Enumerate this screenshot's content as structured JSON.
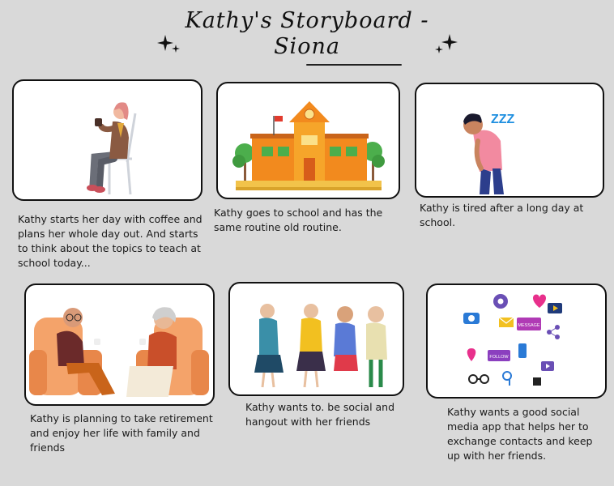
{
  "title": {
    "line1": "Kathy's Storyboard -",
    "line2": "Siona"
  },
  "panels": [
    {
      "caption": "Kathy starts her day with coffee and plans her whole day out. And starts to think about the topics to teach at school today..."
    },
    {
      "caption": "Kathy goes to school and has the same routine old routine."
    },
    {
      "caption": "Kathy is tired after a long day at school."
    },
    {
      "caption": "Kathy is planning to take retirement and enjoy her life with family and friends"
    },
    {
      "caption": "Kathy wants to. be social and hangout with her friends"
    },
    {
      "caption": "Kathy wants a good social media app that helps her to exchange contacts and keep up with her friends."
    }
  ],
  "illustration_text": {
    "zzz": "ZZZ",
    "message_tag": "MESSAGE",
    "follow_tag": "FOLLOW"
  },
  "colors": {
    "background": "#d9d9d9",
    "card_border": "#111111",
    "school_orange": "#f28a1e",
    "accent_purple": "#8b3fbf",
    "accent_pink": "#e8308c",
    "zzz_blue": "#1f8fe0"
  }
}
